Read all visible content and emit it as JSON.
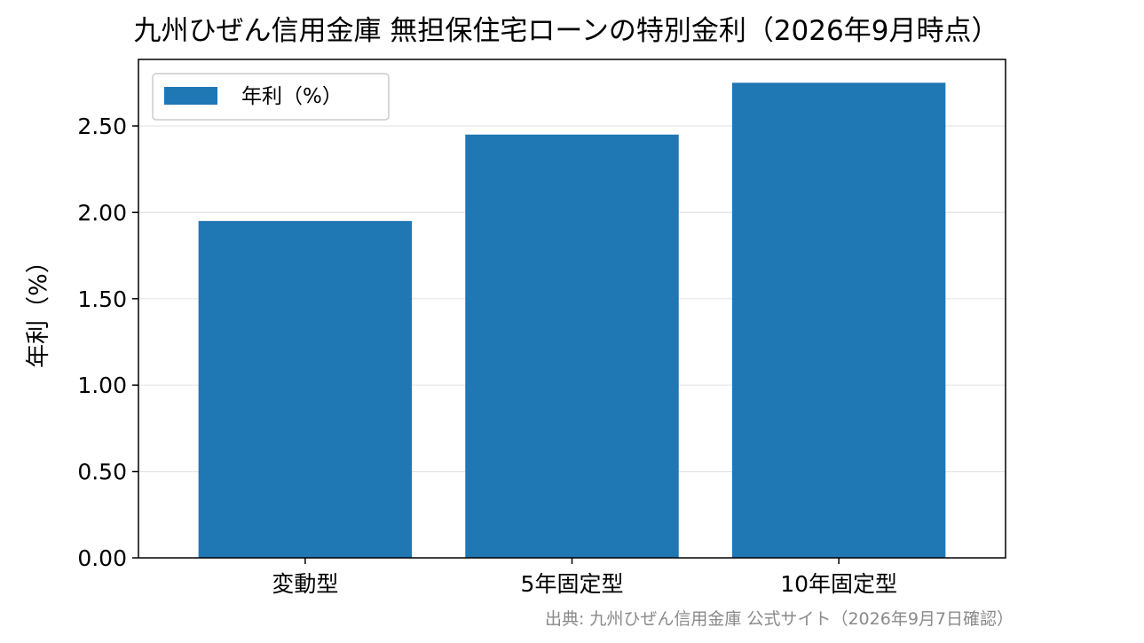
{
  "chart_data": {
    "type": "bar",
    "title": "九州ひぜん信用金庫 無担保住宅ローンの特別金利（2026年9月時点）",
    "categories": [
      "変動型",
      "5年固定型",
      "10年固定型"
    ],
    "series": [
      {
        "name": "年利（%）",
        "values": [
          1.95,
          2.45,
          2.75
        ],
        "color": "#1f77b4"
      }
    ],
    "xlabel": "",
    "ylabel": "年利（%）",
    "ylim": [
      0,
      2.885
    ],
    "yticks": [
      "0.00",
      "0.50",
      "1.00",
      "1.50",
      "2.00",
      "2.50"
    ],
    "ytick_values": [
      0,
      0.5,
      1.0,
      1.5,
      2.0,
      2.5
    ],
    "grid": "horizontal",
    "legend_position": "top-left",
    "source_note": "出典: 九州ひぜん信用金庫 公式サイト（2026年9月7日確認）"
  }
}
